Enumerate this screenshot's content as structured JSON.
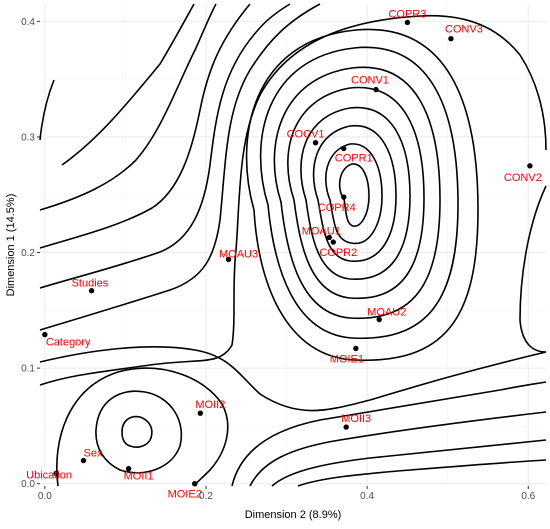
{
  "chart_data": {
    "type": "scatter",
    "title": "",
    "xlabel": "Dimension 2 (8.9%)",
    "ylabel": "Dimension 1 (14.5%)",
    "xlim": [
      -0.006,
      0.622
    ],
    "ylim": [
      -0.002,
      0.415
    ],
    "x_ticks": [
      0.0,
      0.2,
      0.4,
      0.6
    ],
    "x_tick_labels": [
      "0.0",
      "0.2",
      "0.4",
      "0.6"
    ],
    "y_ticks": [
      0.0,
      0.1,
      0.2,
      0.3,
      0.4
    ],
    "y_tick_labels": [
      "0.0",
      "0.1",
      "0.2",
      "0.3",
      "0.4"
    ],
    "grid": true,
    "legend": "none",
    "overlay": "2d density contours",
    "point_color": "#000000",
    "label_color": "#ff0000",
    "points": [
      {
        "label": "COPR3",
        "x": 0.45,
        "y": 0.399
      },
      {
        "label": "CONV3",
        "x": 0.504,
        "y": 0.385
      },
      {
        "label": "CONV1",
        "x": 0.411,
        "y": 0.341
      },
      {
        "label": "COCV1",
        "x": 0.336,
        "y": 0.295
      },
      {
        "label": "COPR1",
        "x": 0.371,
        "y": 0.29
      },
      {
        "label": "CONV2",
        "x": 0.602,
        "y": 0.275
      },
      {
        "label": "COPR4",
        "x": 0.371,
        "y": 0.248
      },
      {
        "label": "MOAU1",
        "x": 0.353,
        "y": 0.213
      },
      {
        "label": "COPR2",
        "x": 0.358,
        "y": 0.209
      },
      {
        "label": "MOAU3",
        "x": 0.228,
        "y": 0.194
      },
      {
        "label": "Studies",
        "x": 0.058,
        "y": 0.167
      },
      {
        "label": "MOAU2",
        "x": 0.415,
        "y": 0.142
      },
      {
        "label": "Category",
        "x": 0.0,
        "y": 0.129
      },
      {
        "label": "MOIE1",
        "x": 0.386,
        "y": 0.117
      },
      {
        "label": "MOII2",
        "x": 0.193,
        "y": 0.061
      },
      {
        "label": "MOII3",
        "x": 0.374,
        "y": 0.049
      },
      {
        "label": "Sex",
        "x": 0.048,
        "y": 0.02
      },
      {
        "label": "MOII1",
        "x": 0.104,
        "y": 0.013
      },
      {
        "label": "Ubication",
        "x": 0.014,
        "y": 0.009
      },
      {
        "label": "MOIE2",
        "x": 0.186,
        "y": 0.0
      }
    ]
  }
}
